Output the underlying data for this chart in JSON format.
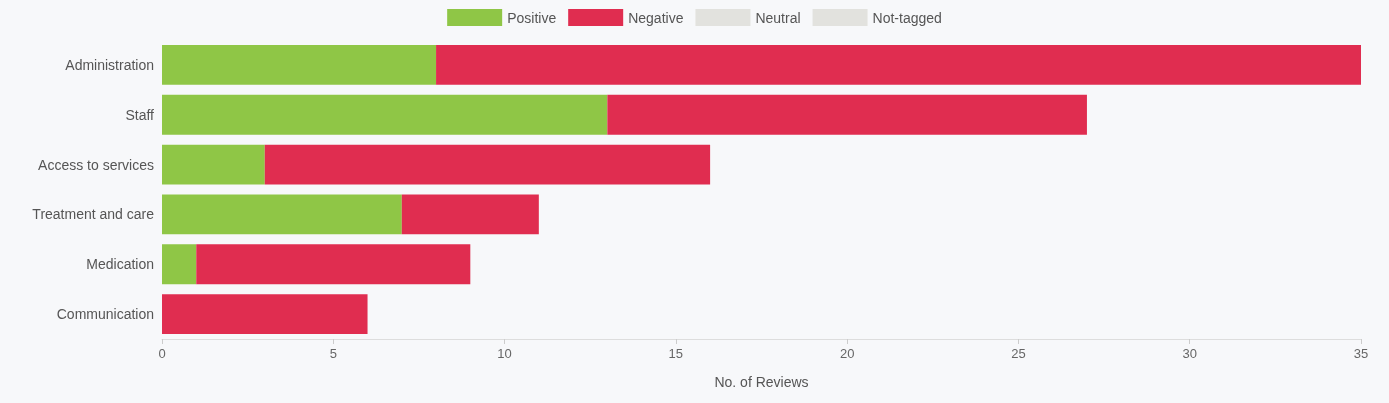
{
  "chart_data": {
    "type": "bar",
    "orientation": "horizontal",
    "stacked": true,
    "xlabel": "No. of Reviews",
    "categories": [
      "Administration",
      "Staff",
      "Access to services",
      "Treatment and care",
      "Medication",
      "Communication"
    ],
    "series": [
      {
        "name": "Positive",
        "color": "#8fc646",
        "values": [
          8,
          13,
          3,
          7,
          1,
          0
        ]
      },
      {
        "name": "Negative",
        "color": "#e02d50",
        "values": [
          27,
          14,
          13,
          4,
          8,
          6
        ]
      },
      {
        "name": "Neutral",
        "color": "#e2e2de",
        "values": [
          0,
          0,
          0,
          0,
          0,
          0
        ]
      },
      {
        "name": "Not-tagged",
        "color": "#e2e2de",
        "values": [
          0,
          0,
          0,
          0,
          0,
          0
        ]
      }
    ],
    "xlim": [
      0,
      35
    ],
    "xticks": [
      0,
      5,
      10,
      15,
      20,
      25,
      30,
      35
    ],
    "grid": false,
    "legend": "top"
  }
}
